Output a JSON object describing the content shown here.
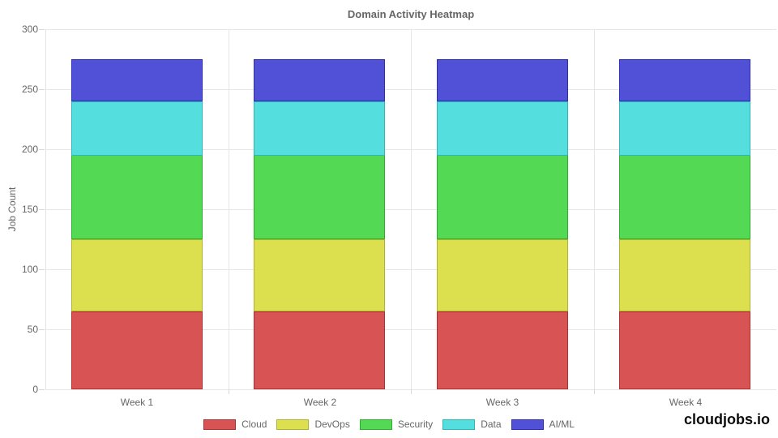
{
  "chart_data": {
    "type": "bar",
    "stacked": true,
    "title": "Domain Activity Heatmap",
    "xlabel": "",
    "ylabel": "Job Count",
    "categories": [
      "Week 1",
      "Week 2",
      "Week 3",
      "Week 4"
    ],
    "series": [
      {
        "name": "Cloud",
        "values": [
          65,
          65,
          65,
          65
        ],
        "color": "#d85454",
        "border": "#b03030"
      },
      {
        "name": "DevOps",
        "values": [
          60,
          60,
          60,
          60
        ],
        "color": "#dcdf4e",
        "border": "#b0b332"
      },
      {
        "name": "Security",
        "values": [
          70,
          70,
          70,
          70
        ],
        "color": "#54d954",
        "border": "#2fae2f"
      },
      {
        "name": "Data",
        "values": [
          45,
          45,
          45,
          45
        ],
        "color": "#55dede",
        "border": "#2fb5b5"
      },
      {
        "name": "AI/ML",
        "values": [
          35,
          35,
          35,
          35
        ],
        "color": "#5151d8",
        "border": "#2d2db8"
      }
    ],
    "ylim": [
      0,
      300
    ],
    "ytick_step": 50,
    "yticks": [
      0,
      50,
      100,
      150,
      200,
      250,
      300
    ],
    "grid": true,
    "grid_color": "#e6e6e6",
    "axis_text_color": "#666666",
    "legend_position": "bottom"
  },
  "branding": {
    "text": "cloudjobs.io"
  }
}
